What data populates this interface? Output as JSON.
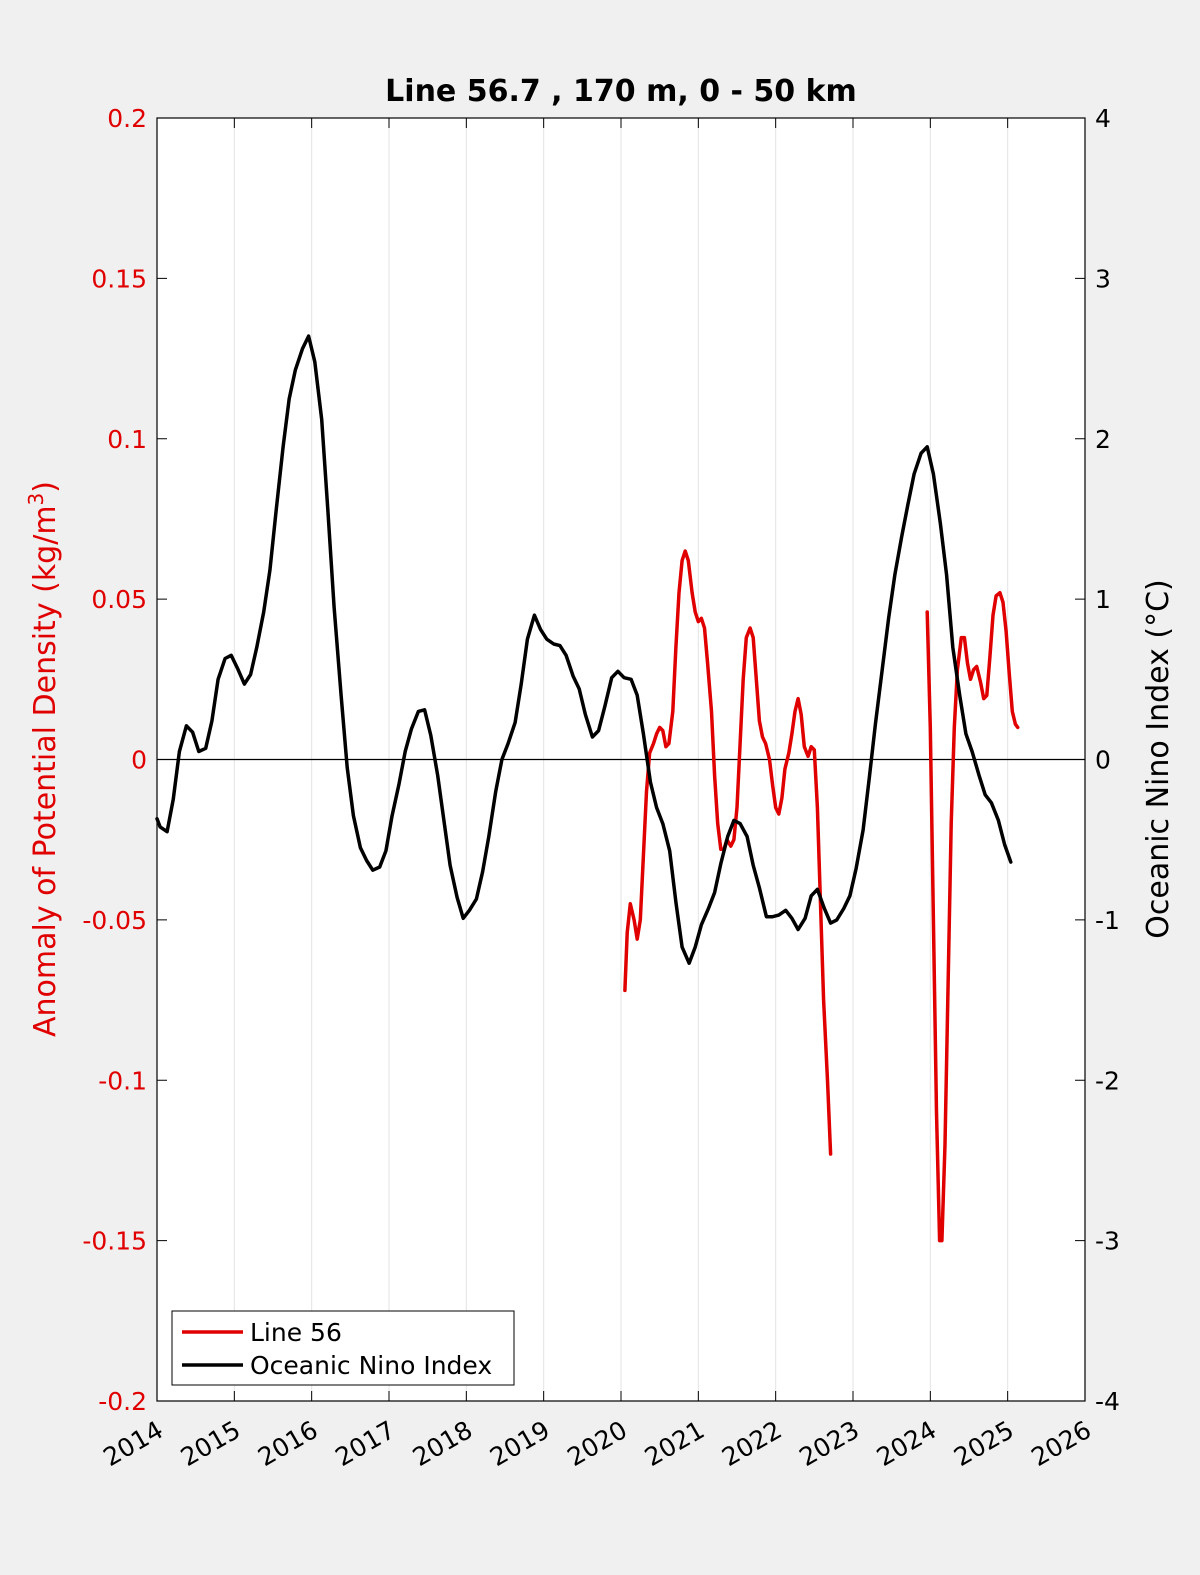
{
  "chart_data": {
    "type": "line",
    "title": "Line 56.7 , 170 m, 0 - 50 km",
    "x_axis": {
      "ticks": [
        "2014",
        "2015",
        "2016",
        "2017",
        "2018",
        "2019",
        "2020",
        "2021",
        "2022",
        "2023",
        "2024",
        "2025",
        "2026"
      ],
      "range": [
        2014,
        2026
      ],
      "grid": true
    },
    "y_left": {
      "label_main": "Anomaly of Potential Density (kg/m",
      "label_sup": "3",
      "label_close": ")",
      "range": [
        -0.2,
        0.2
      ],
      "ticks": [
        "0.2",
        "0.15",
        "0.1",
        "0.05",
        "0",
        "-0.05",
        "-0.1",
        "-0.15",
        "-0.2"
      ],
      "color": "#e00000"
    },
    "y_right": {
      "label": "Oceanic Nino Index (°C)",
      "range": [
        -4,
        4
      ],
      "ticks": [
        "4",
        "3",
        "2",
        "1",
        "0",
        "-1",
        "-2",
        "-3",
        "-4"
      ],
      "color": "#000000"
    },
    "zero_line": true,
    "legend": {
      "position": "bottom-left",
      "entries": [
        {
          "label": "Line 56",
          "color": "#e00000"
        },
        {
          "label": "Oceanic Nino Index",
          "color": "#000000"
        }
      ]
    },
    "series": [
      {
        "name": "Line 56",
        "axis": "left",
        "color": "#e00000",
        "segments": [
          [
            [
              2020.05,
              -0.072
            ],
            [
              2020.08,
              -0.054
            ],
            [
              2020.12,
              -0.045
            ],
            [
              2020.17,
              -0.05
            ],
            [
              2020.21,
              -0.056
            ],
            [
              2020.25,
              -0.05
            ],
            [
              2020.29,
              -0.03
            ],
            [
              2020.33,
              -0.01
            ],
            [
              2020.37,
              0.002
            ],
            [
              2020.42,
              0.005
            ],
            [
              2020.46,
              0.008
            ],
            [
              2020.5,
              0.01
            ],
            [
              2020.54,
              0.009
            ],
            [
              2020.58,
              0.004
            ],
            [
              2020.62,
              0.005
            ],
            [
              2020.67,
              0.015
            ],
            [
              2020.71,
              0.035
            ],
            [
              2020.75,
              0.052
            ],
            [
              2020.79,
              0.062
            ],
            [
              2020.83,
              0.065
            ],
            [
              2020.87,
              0.062
            ],
            [
              2020.92,
              0.052
            ],
            [
              2020.96,
              0.046
            ],
            [
              2021.0,
              0.043
            ],
            [
              2021.04,
              0.044
            ],
            [
              2021.08,
              0.041
            ],
            [
              2021.12,
              0.03
            ],
            [
              2021.17,
              0.015
            ],
            [
              2021.21,
              -0.005
            ],
            [
              2021.25,
              -0.02
            ],
            [
              2021.29,
              -0.028
            ],
            [
              2021.33,
              -0.028
            ],
            [
              2021.37,
              -0.025
            ],
            [
              2021.42,
              -0.027
            ],
            [
              2021.46,
              -0.025
            ],
            [
              2021.5,
              -0.015
            ],
            [
              2021.54,
              0.005
            ],
            [
              2021.58,
              0.025
            ],
            [
              2021.62,
              0.038
            ],
            [
              2021.67,
              0.041
            ],
            [
              2021.71,
              0.038
            ],
            [
              2021.75,
              0.025
            ],
            [
              2021.79,
              0.012
            ],
            [
              2021.83,
              0.007
            ],
            [
              2021.87,
              0.005
            ],
            [
              2021.92,
              0.0
            ],
            [
              2021.96,
              -0.008
            ],
            [
              2022.0,
              -0.015
            ],
            [
              2022.04,
              -0.017
            ],
            [
              2022.08,
              -0.012
            ],
            [
              2022.12,
              -0.003
            ],
            [
              2022.17,
              0.002
            ],
            [
              2022.21,
              0.008
            ],
            [
              2022.25,
              0.015
            ],
            [
              2022.29,
              0.019
            ],
            [
              2022.33,
              0.014
            ],
            [
              2022.37,
              0.004
            ],
            [
              2022.42,
              0.001
            ],
            [
              2022.46,
              0.004
            ],
            [
              2022.5,
              0.003
            ],
            [
              2022.54,
              -0.015
            ],
            [
              2022.58,
              -0.045
            ],
            [
              2022.62,
              -0.075
            ],
            [
              2022.67,
              -0.1
            ],
            [
              2022.71,
              -0.123
            ]
          ],
          [
            [
              2023.96,
              0.046
            ],
            [
              2024.0,
              0.01
            ],
            [
              2024.04,
              -0.05
            ],
            [
              2024.08,
              -0.11
            ],
            [
              2024.12,
              -0.15
            ],
            [
              2024.15,
              -0.15
            ],
            [
              2024.19,
              -0.12
            ],
            [
              2024.23,
              -0.07
            ],
            [
              2024.27,
              -0.02
            ],
            [
              2024.31,
              0.01
            ],
            [
              2024.35,
              0.028
            ],
            [
              2024.4,
              0.038
            ],
            [
              2024.44,
              0.038
            ],
            [
              2024.48,
              0.03
            ],
            [
              2024.52,
              0.025
            ],
            [
              2024.56,
              0.028
            ],
            [
              2024.6,
              0.029
            ],
            [
              2024.65,
              0.024
            ],
            [
              2024.69,
              0.019
            ],
            [
              2024.73,
              0.02
            ],
            [
              2024.77,
              0.032
            ],
            [
              2024.81,
              0.045
            ],
            [
              2024.85,
              0.051
            ],
            [
              2024.9,
              0.052
            ],
            [
              2024.94,
              0.049
            ],
            [
              2024.98,
              0.04
            ],
            [
              2025.02,
              0.027
            ],
            [
              2025.06,
              0.015
            ],
            [
              2025.1,
              0.011
            ],
            [
              2025.13,
              0.01
            ]
          ]
        ]
      },
      {
        "name": "Oceanic Nino Index",
        "axis": "right",
        "color": "#000000",
        "segments": [
          [
            [
              2014.0,
              -0.37
            ],
            [
              2014.04,
              -0.42
            ],
            [
              2014.13,
              -0.45
            ],
            [
              2014.21,
              -0.25
            ],
            [
              2014.29,
              0.05
            ],
            [
              2014.38,
              0.21
            ],
            [
              2014.46,
              0.17
            ],
            [
              2014.54,
              0.05
            ],
            [
              2014.63,
              0.07
            ],
            [
              2014.71,
              0.24
            ],
            [
              2014.79,
              0.5
            ],
            [
              2014.88,
              0.63
            ],
            [
              2014.96,
              0.65
            ],
            [
              2015.04,
              0.57
            ],
            [
              2015.13,
              0.47
            ],
            [
              2015.21,
              0.53
            ],
            [
              2015.29,
              0.7
            ],
            [
              2015.38,
              0.92
            ],
            [
              2015.46,
              1.18
            ],
            [
              2015.54,
              1.55
            ],
            [
              2015.63,
              1.95
            ],
            [
              2015.71,
              2.25
            ],
            [
              2015.79,
              2.43
            ],
            [
              2015.88,
              2.56
            ],
            [
              2015.96,
              2.64
            ],
            [
              2016.04,
              2.48
            ],
            [
              2016.13,
              2.12
            ],
            [
              2016.21,
              1.55
            ],
            [
              2016.29,
              0.95
            ],
            [
              2016.38,
              0.4
            ],
            [
              2016.46,
              -0.05
            ],
            [
              2016.54,
              -0.35
            ],
            [
              2016.63,
              -0.55
            ],
            [
              2016.71,
              -0.63
            ],
            [
              2016.79,
              -0.69
            ],
            [
              2016.88,
              -0.67
            ],
            [
              2016.96,
              -0.57
            ],
            [
              2017.04,
              -0.35
            ],
            [
              2017.13,
              -0.15
            ],
            [
              2017.21,
              0.05
            ],
            [
              2017.29,
              0.19
            ],
            [
              2017.38,
              0.3
            ],
            [
              2017.46,
              0.31
            ],
            [
              2017.54,
              0.15
            ],
            [
              2017.63,
              -0.1
            ],
            [
              2017.71,
              -0.38
            ],
            [
              2017.79,
              -0.66
            ],
            [
              2017.88,
              -0.86
            ],
            [
              2017.96,
              -0.99
            ],
            [
              2018.04,
              -0.94
            ],
            [
              2018.13,
              -0.87
            ],
            [
              2018.21,
              -0.7
            ],
            [
              2018.29,
              -0.48
            ],
            [
              2018.38,
              -0.2
            ],
            [
              2018.46,
              0.0
            ],
            [
              2018.54,
              0.1
            ],
            [
              2018.63,
              0.23
            ],
            [
              2018.71,
              0.47
            ],
            [
              2018.79,
              0.75
            ],
            [
              2018.88,
              0.9
            ],
            [
              2018.96,
              0.81
            ],
            [
              2019.04,
              0.75
            ],
            [
              2019.13,
              0.72
            ],
            [
              2019.21,
              0.71
            ],
            [
              2019.29,
              0.65
            ],
            [
              2019.38,
              0.52
            ],
            [
              2019.46,
              0.44
            ],
            [
              2019.54,
              0.28
            ],
            [
              2019.63,
              0.14
            ],
            [
              2019.71,
              0.18
            ],
            [
              2019.79,
              0.33
            ],
            [
              2019.88,
              0.51
            ],
            [
              2019.96,
              0.55
            ],
            [
              2020.04,
              0.51
            ],
            [
              2020.13,
              0.5
            ],
            [
              2020.21,
              0.4
            ],
            [
              2020.29,
              0.16
            ],
            [
              2020.38,
              -0.14
            ],
            [
              2020.46,
              -0.3
            ],
            [
              2020.54,
              -0.4
            ],
            [
              2020.63,
              -0.57
            ],
            [
              2020.71,
              -0.89
            ],
            [
              2020.79,
              -1.17
            ],
            [
              2020.88,
              -1.27
            ],
            [
              2020.96,
              -1.17
            ],
            [
              2021.04,
              -1.03
            ],
            [
              2021.13,
              -0.93
            ],
            [
              2021.21,
              -0.83
            ],
            [
              2021.29,
              -0.65
            ],
            [
              2021.38,
              -0.48
            ],
            [
              2021.46,
              -0.38
            ],
            [
              2021.54,
              -0.4
            ],
            [
              2021.63,
              -0.48
            ],
            [
              2021.71,
              -0.66
            ],
            [
              2021.79,
              -0.8
            ],
            [
              2021.88,
              -0.98
            ],
            [
              2021.96,
              -0.98
            ],
            [
              2022.04,
              -0.97
            ],
            [
              2022.13,
              -0.94
            ],
            [
              2022.21,
              -0.99
            ],
            [
              2022.29,
              -1.06
            ],
            [
              2022.38,
              -0.99
            ],
            [
              2022.46,
              -0.85
            ],
            [
              2022.54,
              -0.81
            ],
            [
              2022.63,
              -0.93
            ],
            [
              2022.71,
              -1.02
            ],
            [
              2022.79,
              -1.0
            ],
            [
              2022.88,
              -0.93
            ],
            [
              2022.96,
              -0.85
            ],
            [
              2023.04,
              -0.68
            ],
            [
              2023.13,
              -0.44
            ],
            [
              2023.21,
              -0.12
            ],
            [
              2023.29,
              0.22
            ],
            [
              2023.38,
              0.57
            ],
            [
              2023.46,
              0.88
            ],
            [
              2023.54,
              1.15
            ],
            [
              2023.63,
              1.39
            ],
            [
              2023.71,
              1.59
            ],
            [
              2023.79,
              1.78
            ],
            [
              2023.88,
              1.91
            ],
            [
              2023.96,
              1.95
            ],
            [
              2024.04,
              1.78
            ],
            [
              2024.13,
              1.47
            ],
            [
              2024.21,
              1.15
            ],
            [
              2024.29,
              0.7
            ],
            [
              2024.38,
              0.4
            ],
            [
              2024.46,
              0.16
            ],
            [
              2024.54,
              0.05
            ],
            [
              2024.63,
              -0.1
            ],
            [
              2024.71,
              -0.22
            ],
            [
              2024.79,
              -0.27
            ],
            [
              2024.88,
              -0.38
            ],
            [
              2024.96,
              -0.53
            ],
            [
              2025.04,
              -0.64
            ]
          ]
        ]
      }
    ]
  }
}
